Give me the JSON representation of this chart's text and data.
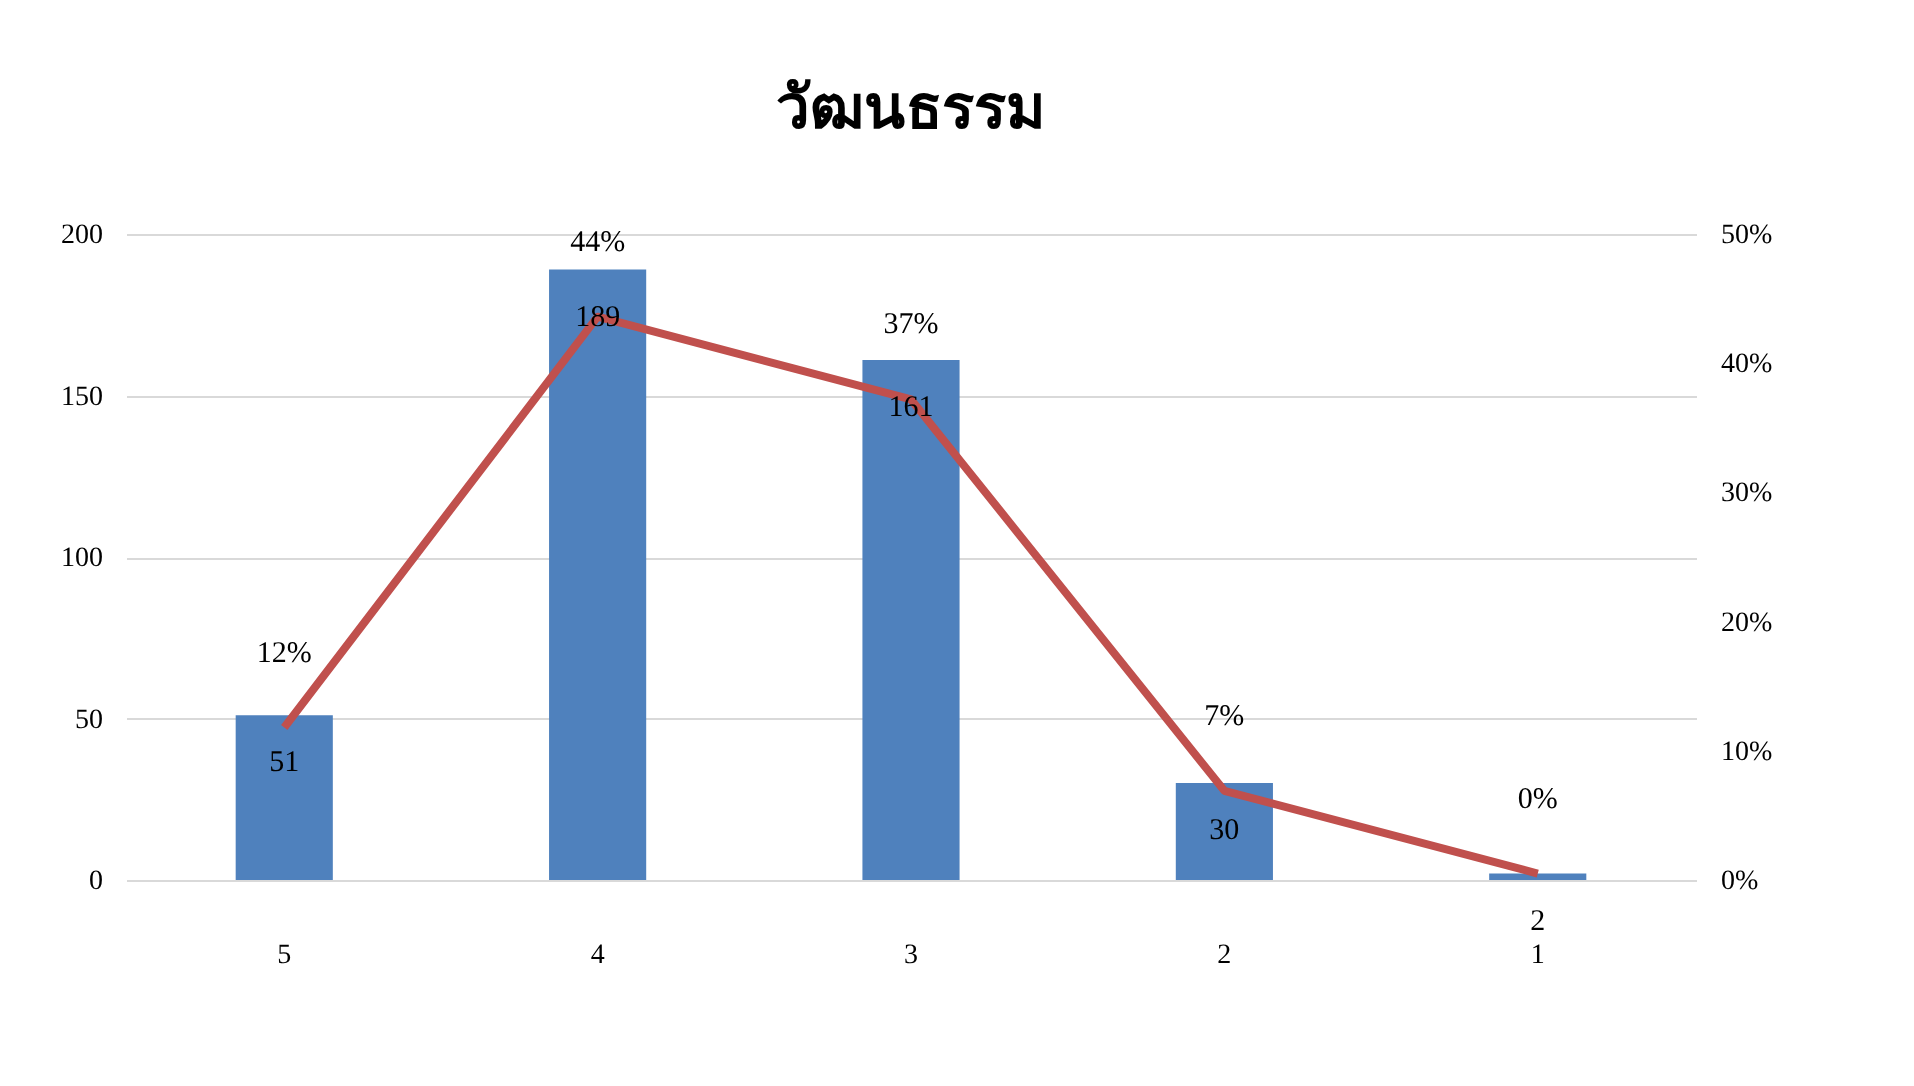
{
  "chart_data": {
    "type": "bar",
    "title": "วัฒนธรรม",
    "categories": [
      "5",
      "4",
      "3",
      "2",
      "1"
    ],
    "series": [
      {
        "color": "#4f81bd",
        "values": [
          51,
          189,
          161,
          30,
          2
        ],
        "value_labels": [
          "51",
          "189",
          "161",
          "30",
          "2"
        ]
      },
      {
        "type": "line",
        "axis": "y2",
        "color": "#c0504d",
        "values": [
          11.8,
          43.6,
          37.2,
          6.9,
          0.5
        ],
        "value_labels": [
          "12%",
          "44%",
          "37%",
          "7%",
          "0%"
        ]
      }
    ],
    "ylim": [
      0,
      200
    ],
    "yticks": [
      0,
      50,
      100,
      150,
      200
    ],
    "y2lim": [
      0,
      50
    ],
    "y2ticks": [
      {
        "value": 0,
        "label": "0%"
      },
      {
        "value": 10,
        "label": "10%"
      },
      {
        "value": 20,
        "label": "20%"
      },
      {
        "value": 30,
        "label": "30%"
      },
      {
        "value": 40,
        "label": "40%"
      },
      {
        "value": 50,
        "label": "50%"
      }
    ],
    "grid": "y",
    "marker": "none",
    "line_style": "solid"
  }
}
